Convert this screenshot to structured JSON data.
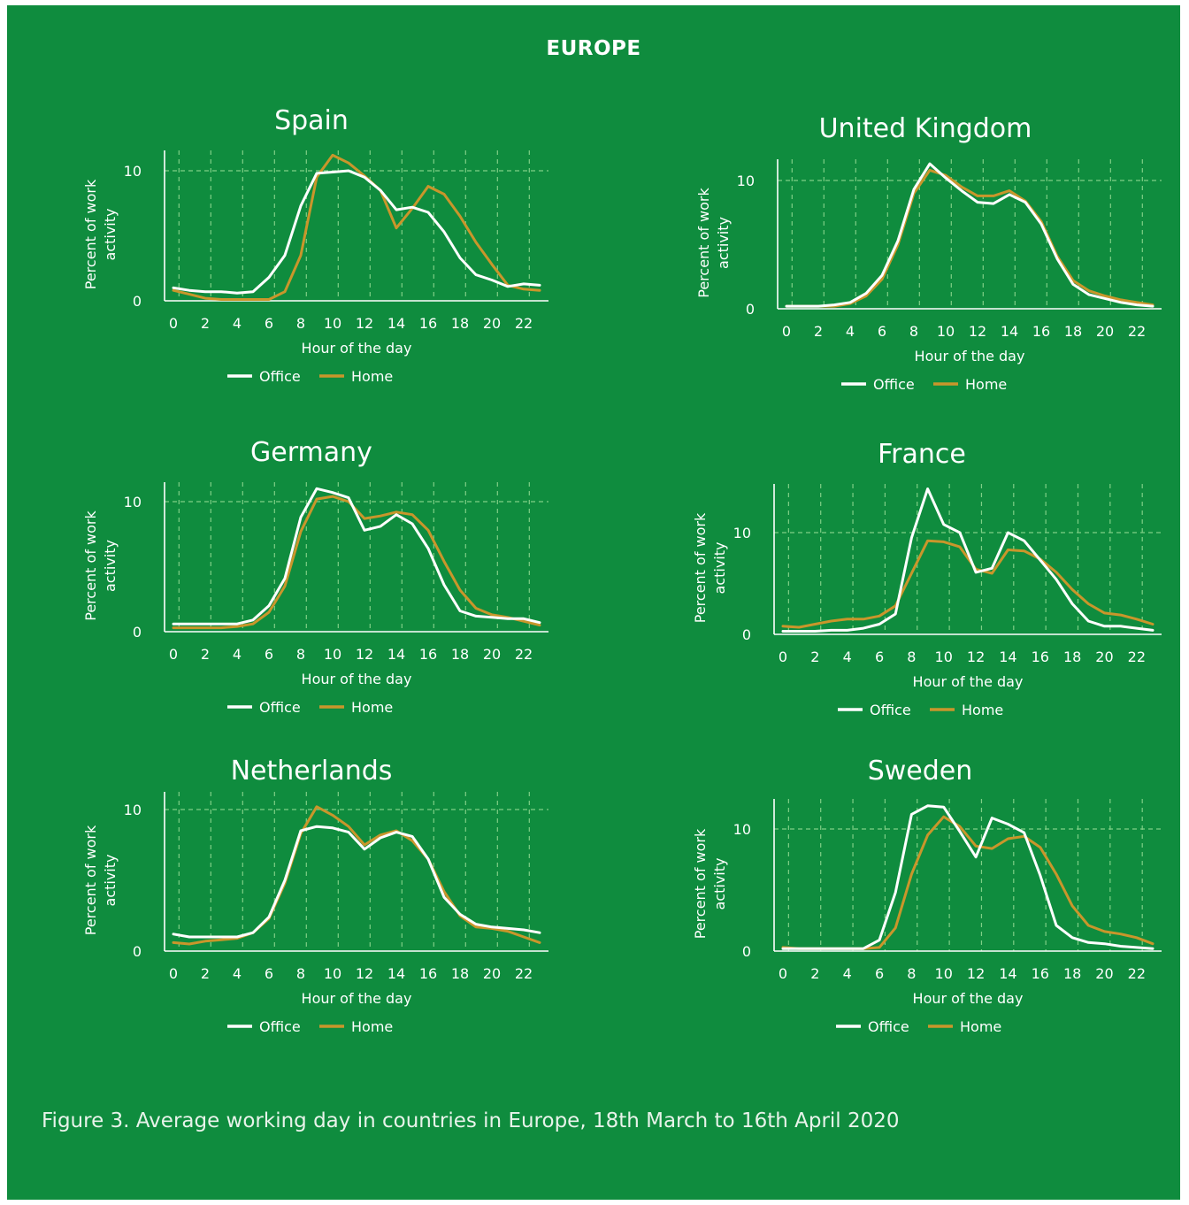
{
  "header": "EUROPE",
  "caption": "Figure 3. Average working day in countries in Europe,  18th March to 16th April 2020",
  "colors": {
    "background": "#0f8c3e",
    "office": "#ffffff",
    "home": "#c9962b",
    "grid": "#7fcf86",
    "text": "#ffffff"
  },
  "chart_data": [
    {
      "type": "line",
      "title": "Spain",
      "xlabel": "Hour of the day",
      "ylabel": "Percent of work activity",
      "x": [
        0,
        1,
        2,
        3,
        4,
        5,
        6,
        7,
        8,
        9,
        10,
        11,
        12,
        13,
        14,
        15,
        16,
        17,
        18,
        19,
        20,
        21,
        22,
        23
      ],
      "xticks": [
        "0",
        "2",
        "4",
        "6",
        "8",
        "10",
        "12",
        "14",
        "16",
        "18",
        "20",
        "22"
      ],
      "yticks": [
        "0",
        "10"
      ],
      "ylim": [
        0,
        12
      ],
      "grid": true,
      "legend": "bottom",
      "series": [
        {
          "name": "Office",
          "values": [
            1.0,
            0.8,
            0.7,
            0.7,
            0.6,
            0.7,
            1.8,
            3.5,
            7.3,
            9.8,
            9.9,
            10.0,
            9.5,
            8.5,
            7.0,
            7.2,
            6.8,
            5.3,
            3.3,
            2.0,
            1.6,
            1.1,
            1.3,
            1.2
          ]
        },
        {
          "name": "Home",
          "values": [
            0.8,
            0.5,
            0.2,
            0.1,
            0.1,
            0.1,
            0.1,
            0.7,
            3.5,
            9.5,
            11.2,
            10.6,
            9.6,
            8.5,
            5.6,
            7.1,
            8.8,
            8.2,
            6.5,
            4.5,
            2.8,
            1.2,
            0.9,
            0.8
          ]
        }
      ]
    },
    {
      "type": "line",
      "title": "United Kingdom",
      "xlabel": "Hour of the day",
      "ylabel": "Percent of work activity",
      "x": [
        0,
        1,
        2,
        3,
        4,
        5,
        6,
        7,
        8,
        9,
        10,
        11,
        12,
        13,
        14,
        15,
        16,
        17,
        18,
        19,
        20,
        21,
        22,
        23
      ],
      "xticks": [
        "0",
        "2",
        "4",
        "6",
        "8",
        "10",
        "12",
        "14",
        "16",
        "18",
        "20",
        "22"
      ],
      "yticks": [
        "0",
        "10"
      ],
      "ylim": [
        0,
        12
      ],
      "grid": true,
      "legend": "bottom",
      "series": [
        {
          "name": "Office",
          "values": [
            0.2,
            0.2,
            0.2,
            0.3,
            0.5,
            1.2,
            2.6,
            5.3,
            9.3,
            11.3,
            10.2,
            9.2,
            8.3,
            8.2,
            8.9,
            8.3,
            6.6,
            3.9,
            1.9,
            1.1,
            0.8,
            0.5,
            0.3,
            0.2
          ]
        },
        {
          "name": "Home",
          "values": [
            0.2,
            0.2,
            0.2,
            0.2,
            0.4,
            1.0,
            2.3,
            5.0,
            9.0,
            10.8,
            10.4,
            9.5,
            8.8,
            8.8,
            9.2,
            8.4,
            6.8,
            4.1,
            2.2,
            1.4,
            1.0,
            0.7,
            0.5,
            0.3
          ]
        }
      ]
    },
    {
      "type": "line",
      "title": "Germany",
      "xlabel": "Hour of the day",
      "ylabel": "Percent of work activity",
      "x": [
        0,
        1,
        2,
        3,
        4,
        5,
        6,
        7,
        8,
        9,
        10,
        11,
        12,
        13,
        14,
        15,
        16,
        17,
        18,
        19,
        20,
        21,
        22,
        23
      ],
      "xticks": [
        "0",
        "2",
        "4",
        "6",
        "8",
        "10",
        "12",
        "14",
        "16",
        "18",
        "20",
        "22"
      ],
      "yticks": [
        "0",
        "10"
      ],
      "ylim": [
        0,
        12
      ],
      "grid": true,
      "legend": "bottom",
      "series": [
        {
          "name": "Office",
          "values": [
            0.6,
            0.6,
            0.6,
            0.6,
            0.6,
            0.9,
            2.0,
            4.1,
            8.8,
            11.0,
            10.7,
            10.3,
            7.8,
            8.1,
            9.0,
            8.3,
            6.4,
            3.6,
            1.6,
            1.2,
            1.1,
            1.0,
            1.0,
            0.7
          ]
        },
        {
          "name": "Home",
          "values": [
            0.3,
            0.3,
            0.3,
            0.3,
            0.4,
            0.6,
            1.5,
            3.5,
            7.7,
            10.2,
            10.4,
            10.0,
            8.7,
            8.9,
            9.2,
            9.0,
            7.8,
            5.4,
            3.2,
            1.8,
            1.3,
            1.1,
            0.8,
            0.5
          ]
        }
      ]
    },
    {
      "type": "line",
      "title": "France",
      "xlabel": "Hour of the day",
      "ylabel": "Percent of work activity",
      "x": [
        0,
        1,
        2,
        3,
        4,
        5,
        6,
        7,
        8,
        9,
        10,
        11,
        12,
        13,
        14,
        15,
        16,
        17,
        18,
        19,
        20,
        21,
        22,
        23
      ],
      "xticks": [
        "0",
        "2",
        "4",
        "6",
        "8",
        "10",
        "12",
        "14",
        "16",
        "18",
        "20",
        "22"
      ],
      "yticks": [
        "0",
        "10"
      ],
      "ylim": [
        0,
        15
      ],
      "grid": true,
      "legend": "bottom",
      "series": [
        {
          "name": "Office",
          "values": [
            0.3,
            0.3,
            0.3,
            0.4,
            0.4,
            0.6,
            1.0,
            2.0,
            9.5,
            14.3,
            10.8,
            10.0,
            6.1,
            6.5,
            10.0,
            9.2,
            7.3,
            5.4,
            3.0,
            1.3,
            0.8,
            0.8,
            0.6,
            0.4
          ]
        },
        {
          "name": "Home",
          "values": [
            0.8,
            0.7,
            1.0,
            1.3,
            1.5,
            1.5,
            1.8,
            2.8,
            6.0,
            9.2,
            9.1,
            8.6,
            6.4,
            6.0,
            8.3,
            8.2,
            7.4,
            6.1,
            4.4,
            3.0,
            2.1,
            1.9,
            1.5,
            1.0
          ]
        }
      ]
    },
    {
      "type": "line",
      "title": "Netherlands",
      "xlabel": "Hour of the day",
      "ylabel": "Percent of work activity",
      "x": [
        0,
        1,
        2,
        3,
        4,
        5,
        6,
        7,
        8,
        9,
        10,
        11,
        12,
        13,
        14,
        15,
        16,
        17,
        18,
        19,
        20,
        21,
        22,
        23
      ],
      "xticks": [
        "0",
        "2",
        "4",
        "6",
        "8",
        "10",
        "12",
        "14",
        "16",
        "18",
        "20",
        "22"
      ],
      "yticks": [
        "0",
        "10"
      ],
      "ylim": [
        0,
        11
      ],
      "grid": true,
      "legend": "bottom",
      "series": [
        {
          "name": "Office",
          "values": [
            1.2,
            1.0,
            1.0,
            1.0,
            1.0,
            1.3,
            2.4,
            5.0,
            8.5,
            8.8,
            8.7,
            8.4,
            7.2,
            8.0,
            8.4,
            8.1,
            6.5,
            3.8,
            2.6,
            1.9,
            1.7,
            1.6,
            1.5,
            1.3
          ]
        },
        {
          "name": "Home",
          "values": [
            0.6,
            0.5,
            0.7,
            0.8,
            0.9,
            1.3,
            2.3,
            4.8,
            8.3,
            10.2,
            9.6,
            8.8,
            7.5,
            8.2,
            8.5,
            7.8,
            6.5,
            4.2,
            2.5,
            1.7,
            1.6,
            1.4,
            1.0,
            0.6
          ]
        }
      ]
    },
    {
      "type": "line",
      "title": "Sweden",
      "xlabel": "Hour of the day",
      "ylabel": "Percent of work activity",
      "x": [
        0,
        1,
        2,
        3,
        4,
        5,
        6,
        7,
        8,
        9,
        10,
        11,
        12,
        13,
        14,
        15,
        16,
        17,
        18,
        19,
        20,
        21,
        22,
        23
      ],
      "xticks": [
        "0",
        "2",
        "4",
        "6",
        "8",
        "10",
        "12",
        "14",
        "16",
        "18",
        "20",
        "22"
      ],
      "yticks": [
        "0",
        "10"
      ],
      "ylim": [
        0,
        13
      ],
      "grid": true,
      "legend": "bottom",
      "series": [
        {
          "name": "Office",
          "values": [
            0.2,
            0.2,
            0.2,
            0.2,
            0.2,
            0.2,
            0.9,
            4.8,
            11.2,
            11.9,
            11.8,
            9.8,
            7.7,
            10.9,
            10.4,
            9.7,
            6.2,
            2.1,
            1.1,
            0.7,
            0.6,
            0.4,
            0.3,
            0.2
          ]
        },
        {
          "name": "Home",
          "values": [
            0.3,
            0.2,
            0.2,
            0.2,
            0.2,
            0.2,
            0.3,
            1.9,
            6.3,
            9.5,
            11.0,
            10.2,
            8.6,
            8.4,
            9.2,
            9.4,
            8.5,
            6.3,
            3.7,
            2.1,
            1.6,
            1.4,
            1.1,
            0.6
          ]
        }
      ]
    }
  ]
}
